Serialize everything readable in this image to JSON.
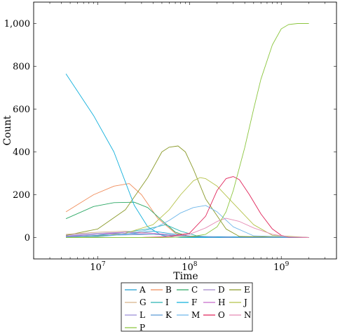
{
  "chart_data": {
    "type": "line",
    "xlabel": "Time",
    "ylabel": "Count",
    "xscale": "log",
    "xlim": [
      2000000,
      4000000000
    ],
    "ylim": [
      -100,
      1100
    ],
    "xticks": [
      {
        "value": 10000000,
        "base": "10",
        "exp": "7"
      },
      {
        "value": 100000000,
        "base": "10",
        "exp": "8"
      },
      {
        "value": 1000000000,
        "base": "10",
        "exp": "9"
      }
    ],
    "yticks": [
      {
        "value": 0,
        "label": "0"
      },
      {
        "value": 200,
        "label": "200"
      },
      {
        "value": 400,
        "label": "400"
      },
      {
        "value": 600,
        "label": "600"
      },
      {
        "value": 800,
        "label": "800"
      },
      {
        "value": 1000,
        "label": "1,000"
      }
    ],
    "legend_position": "bottom-center, below plot",
    "grid": false,
    "series": [
      {
        "name": "A",
        "color": "#1f9ed1",
        "x": [
          4500000,
          10000000,
          20000000,
          40000000,
          70000000,
          100000000,
          2000000000
        ],
        "values": [
          5,
          8,
          15,
          30,
          15,
          5,
          0
        ]
      },
      {
        "name": "B",
        "color": "#f08c5a",
        "x": [
          4500000,
          9000000,
          15000000,
          22000000,
          30000000,
          45000000,
          70000000,
          100000000,
          150000000,
          2000000000
        ],
        "values": [
          120,
          200,
          240,
          252,
          200,
          90,
          20,
          3,
          0,
          0
        ]
      },
      {
        "name": "C",
        "color": "#2ca865",
        "x": [
          4500000,
          9000000,
          15000000,
          25000000,
          35000000,
          50000000,
          70000000,
          100000000,
          150000000,
          2000000000
        ],
        "values": [
          88,
          145,
          163,
          165,
          140,
          80,
          25,
          5,
          0,
          0
        ]
      },
      {
        "name": "D",
        "color": "#a587c9",
        "x": [
          4500000,
          10000000,
          20000000,
          40000000,
          70000000,
          150000000,
          300000000,
          2000000000
        ],
        "values": [
          12,
          20,
          25,
          20,
          10,
          3,
          0,
          0
        ]
      },
      {
        "name": "E",
        "color": "#8a9a2a",
        "x": [
          4500000,
          10000000,
          20000000,
          35000000,
          50000000,
          60000000,
          75000000,
          90000000,
          110000000,
          150000000,
          250000000,
          350000000,
          2000000000
        ],
        "values": [
          10,
          40,
          130,
          280,
          400,
          422,
          428,
          400,
          320,
          180,
          40,
          5,
          0
        ]
      },
      {
        "name": "G",
        "color": "#d8b38a",
        "x": [
          4500000,
          10000000,
          20000000,
          40000000,
          70000000,
          150000000,
          300000000,
          2000000000
        ],
        "values": [
          15,
          25,
          30,
          20,
          10,
          3,
          0,
          0
        ]
      },
      {
        "name": "I",
        "color": "#2bb5b5",
        "x": [
          4500000,
          10000000,
          20000000,
          35000000,
          55000000,
          80000000,
          120000000,
          200000000,
          2000000000
        ],
        "values": [
          2,
          10,
          25,
          40,
          60,
          30,
          8,
          0,
          0
        ]
      },
      {
        "name": "F",
        "color": "#12b0dc",
        "x": [
          4500000,
          9000000,
          15000000,
          25000000,
          35000000,
          50000000,
          60000000,
          80000000,
          2000000000
        ],
        "values": [
          765,
          570,
          400,
          150,
          50,
          10,
          3,
          0,
          0
        ]
      },
      {
        "name": "H",
        "color": "#c86bcb",
        "x": [
          4500000,
          10000000,
          20000000,
          40000000,
          70000000,
          150000000,
          300000000,
          2000000000
        ],
        "values": [
          5,
          15,
          25,
          20,
          10,
          3,
          0,
          0
        ]
      },
      {
        "name": "J",
        "color": "#b5c24a",
        "x": [
          4500000,
          10000000,
          20000000,
          40000000,
          60000000,
          80000000,
          110000000,
          130000000,
          150000000,
          200000000,
          300000000,
          500000000,
          800000000,
          2000000000
        ],
        "values": [
          0,
          5,
          20,
          60,
          130,
          200,
          265,
          280,
          275,
          240,
          160,
          60,
          10,
          0
        ]
      },
      {
        "name": "L",
        "color": "#9b8ed6",
        "x": [
          4500000,
          10000000,
          20000000,
          40000000,
          70000000,
          150000000,
          300000000,
          2000000000
        ],
        "values": [
          8,
          15,
          18,
          15,
          8,
          3,
          0,
          0
        ]
      },
      {
        "name": "K",
        "color": "#5a9bd5",
        "x": [
          4500000,
          10000000,
          20000000,
          40000000,
          70000000,
          150000000,
          300000000,
          2000000000
        ],
        "values": [
          3,
          10,
          12,
          15,
          10,
          3,
          0,
          0
        ]
      },
      {
        "name": "M",
        "color": "#6fb7ea",
        "x": [
          4500000,
          10000000,
          20000000,
          40000000,
          60000000,
          80000000,
          110000000,
          150000000,
          200000000,
          300000000,
          500000000,
          2000000000
        ],
        "values": [
          0,
          3,
          15,
          40,
          80,
          115,
          140,
          150,
          120,
          50,
          8,
          0
        ]
      },
      {
        "name": "O",
        "color": "#e0245a",
        "x": [
          4500000,
          30000000,
          60000000,
          100000000,
          150000000,
          200000000,
          250000000,
          300000000,
          350000000,
          450000000,
          600000000,
          800000000,
          1000000000,
          1200000000,
          2000000000
        ],
        "values": [
          0,
          0,
          5,
          20,
          100,
          220,
          275,
          285,
          270,
          200,
          110,
          40,
          10,
          2,
          0
        ]
      },
      {
        "name": "N",
        "color": "#e58bb4",
        "x": [
          4500000,
          30000000,
          60000000,
          100000000,
          150000000,
          200000000,
          250000000,
          350000000,
          500000000,
          800000000,
          1200000000,
          2000000000
        ],
        "values": [
          0,
          0,
          3,
          15,
          45,
          75,
          90,
          75,
          45,
          15,
          3,
          0
        ]
      },
      {
        "name": "P",
        "color": "#8cc63f",
        "x": [
          4500000,
          50000000,
          100000000,
          150000000,
          200000000,
          250000000,
          300000000,
          400000000,
          500000000,
          600000000,
          800000000,
          1000000000,
          1200000000,
          1500000000,
          2000000000
        ],
        "values": [
          0,
          0,
          3,
          15,
          50,
          120,
          220,
          420,
          600,
          740,
          900,
          975,
          995,
          1000,
          1000
        ]
      }
    ]
  }
}
